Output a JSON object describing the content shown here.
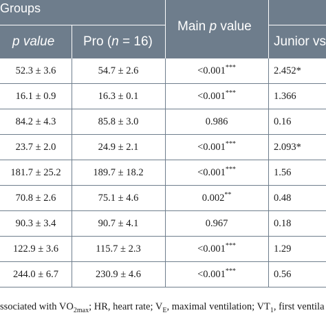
{
  "header": {
    "groups_label": "Groups",
    "col1_label": "p value",
    "col2_label": "Pro (n = 16)",
    "col3_label": "Main p value",
    "col4_label": "Junior vs"
  },
  "rows": [
    {
      "c1": "52.3 ± 3.6",
      "c2": "54.7 ± 2.6",
      "c3": "<0.001",
      "c3_stars": "***",
      "c4": "2.452*"
    },
    {
      "c1": "16.1 ± 0.9",
      "c2": "16.3 ± 0.1",
      "c3": "<0.001",
      "c3_stars": "***",
      "c4": "1.366"
    },
    {
      "c1": "84.2 ± 4.3",
      "c2": "85.8 ± 3.0",
      "c3": "0.986",
      "c3_stars": "",
      "c4": "0.16"
    },
    {
      "c1": "23.7 ± 2.0",
      "c2": "24.9 ± 2.1",
      "c3": "<0.001",
      "c3_stars": "***",
      "c4": "2.093*"
    },
    {
      "c1": "181.7 ± 25.2",
      "c2": "189.7 ± 18.2",
      "c3": "<0.001",
      "c3_stars": "***",
      "c4": "1.56"
    },
    {
      "c1": "70.8 ± 2.6",
      "c2": "75.1 ± 4.6",
      "c3": "0.002",
      "c3_stars": "**",
      "c4": "0.48"
    },
    {
      "c1": "90.3 ± 3.4",
      "c2": "90.7 ± 4.1",
      "c3": "0.967",
      "c3_stars": "",
      "c4": "0.18"
    },
    {
      "c1": "122.9 ± 3.6",
      "c2": "115.7 ± 2.3",
      "c3": "<0.001",
      "c3_stars": "***",
      "c4": "1.29"
    },
    {
      "c1": "244.0 ± 6.7",
      "c2": "230.9 ± 4.6",
      "c3": "<0.001",
      "c3_stars": "***",
      "c4": "0.56"
    }
  ],
  "footnote": {
    "pre": "ssociated with VO",
    "sub1": "2max",
    "mid1": "; HR, heart rate; V",
    "sub2": "E",
    "mid2": ", maximal ventilation; VT",
    "sub3": "1",
    "post": ", first ventila"
  }
}
